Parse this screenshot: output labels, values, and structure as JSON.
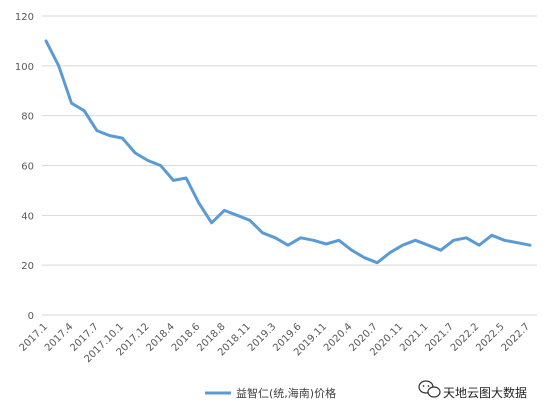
{
  "colors": {
    "line": "#5b9bd5",
    "grid": "#d9d9d9",
    "text": "#595959"
  },
  "watermark": {
    "text": "天地云图大数据",
    "icon": "wechat-logo-icon"
  },
  "chart_data": {
    "type": "line",
    "title": "",
    "xlabel": "",
    "ylabel": "",
    "ylim": [
      0,
      120
    ],
    "yticks": [
      0,
      20,
      40,
      60,
      80,
      100,
      120
    ],
    "grid": true,
    "legend_position": "bottom",
    "x_tick_labels": [
      "2017.1",
      "2017.4",
      "2017.7",
      "2017.10.1",
      "2017.12",
      "2018.4",
      "2018.6",
      "2018.8",
      "2018.11",
      "2019.3",
      "2019.6",
      "2019.11",
      "2020.4",
      "2020.7",
      "2020.11",
      "2021.1",
      "2021.7",
      "2022.2",
      "2022.5",
      "2022.7"
    ],
    "series": [
      {
        "name": "益智仁(统,海南)价格",
        "values": [
          110,
          100,
          85,
          82,
          74,
          72,
          71,
          65,
          62,
          60,
          54,
          55,
          45,
          37,
          42,
          40,
          38,
          33,
          31,
          28,
          31,
          30,
          28.5,
          30,
          26,
          23,
          21,
          25,
          28,
          30,
          28,
          26,
          30,
          31,
          28,
          32,
          30,
          29,
          28
        ]
      }
    ]
  }
}
